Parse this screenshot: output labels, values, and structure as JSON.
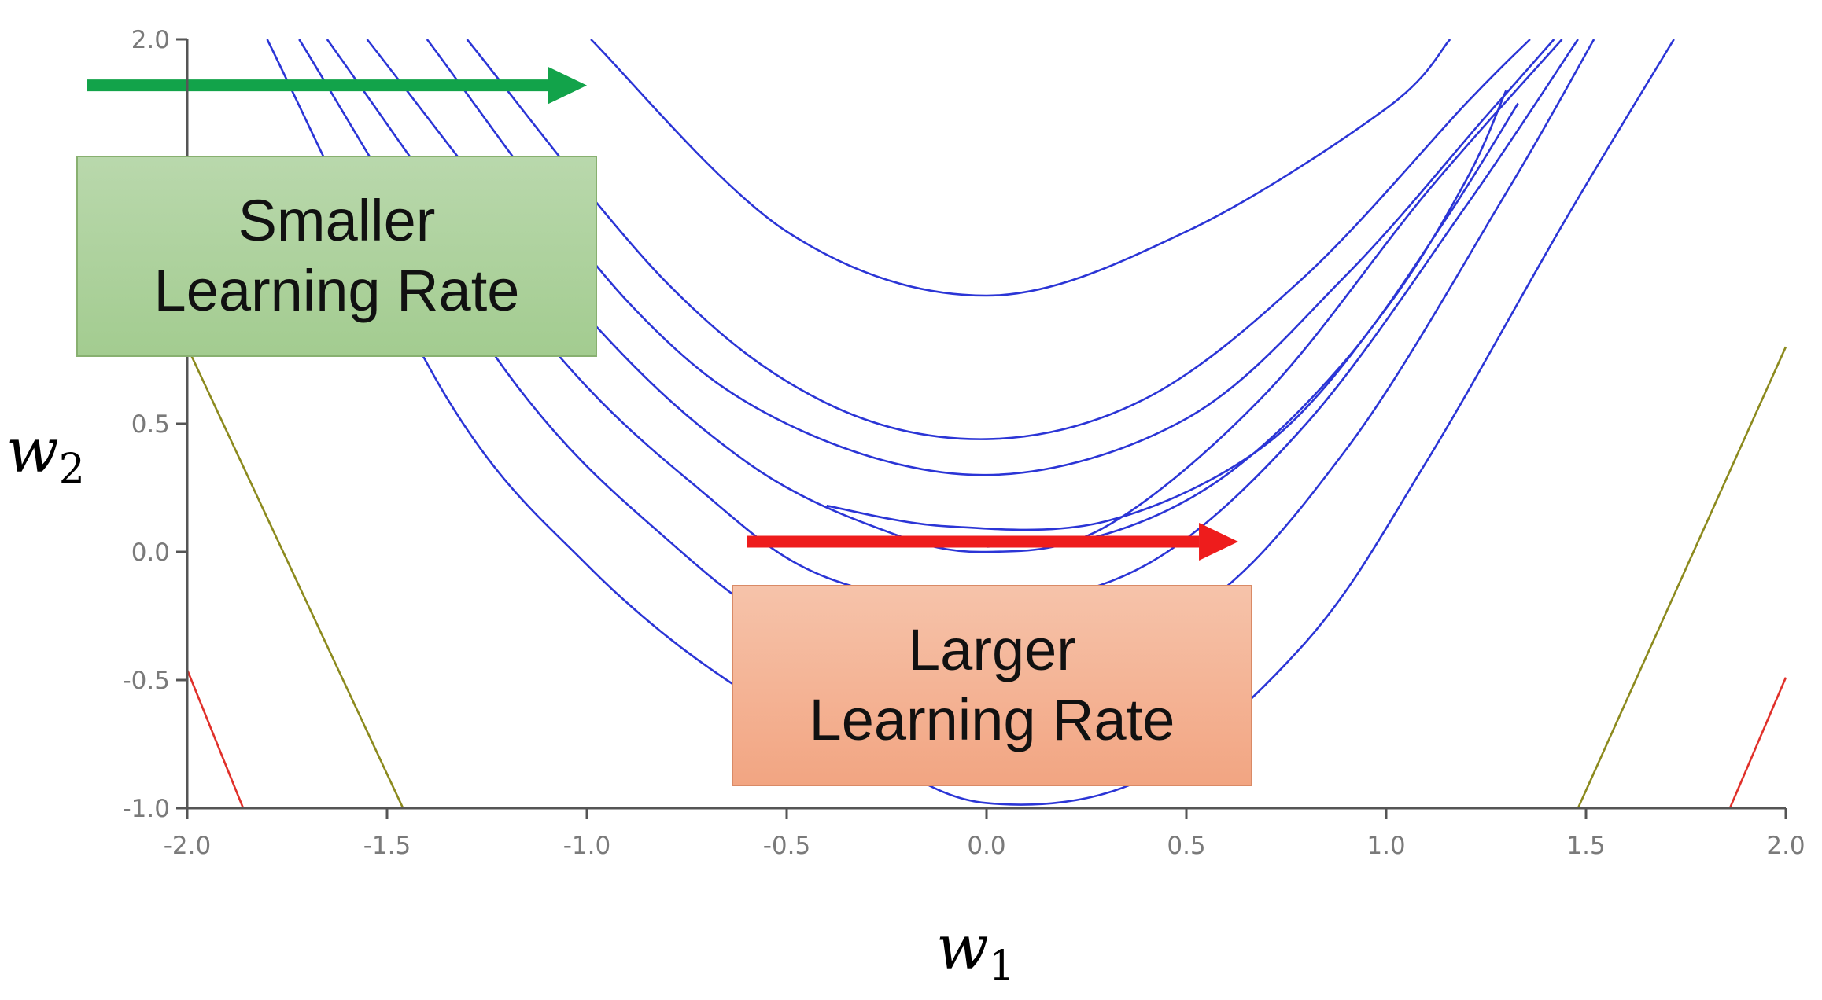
{
  "chart_data": {
    "type": "line",
    "title": "",
    "xlabel": "w",
    "xlabel_subscript": "1",
    "ylabel": "w",
    "ylabel_subscript": "2",
    "xlim": [
      -2.0,
      2.0
    ],
    "ylim": [
      -1.0,
      2.0
    ],
    "x_ticks": [
      -2.0,
      -1.5,
      -1.0,
      -0.5,
      0.0,
      0.5,
      1.0,
      1.5,
      2.0
    ],
    "x_tick_labels": [
      "-2.0",
      "-1.5",
      "-1.0",
      "-0.5",
      "0.0",
      "0.5",
      "1.0",
      "1.5",
      "2.0"
    ],
    "y_ticks": [
      -1.0,
      -0.5,
      0.0,
      0.5,
      1.0,
      1.5,
      2.0
    ],
    "y_tick_labels": [
      "-1.0",
      "-0.5",
      "0.0",
      "0.5",
      "1.0",
      "1.5",
      "2.0"
    ],
    "grid": false,
    "contour_colors": [
      "#2b35d6",
      "#8c8a1e",
      "#e0302a"
    ],
    "contours": [
      {
        "color": "#2b35d6",
        "points": [
          [
            -0.99,
            2.0
          ],
          [
            -0.5,
            1.25
          ],
          [
            0.0,
            1.0
          ],
          [
            0.5,
            1.25
          ],
          [
            1.0,
            1.73
          ],
          [
            1.16,
            2.0
          ]
        ]
      },
      {
        "color": "#2b35d6",
        "points": [
          [
            -1.3,
            2.0
          ],
          [
            -0.8,
            1.05
          ],
          [
            -0.4,
            0.58
          ],
          [
            0.0,
            0.44
          ],
          [
            0.4,
            0.6
          ],
          [
            0.8,
            1.08
          ],
          [
            1.2,
            1.75
          ],
          [
            1.36,
            2.0
          ]
        ]
      },
      {
        "color": "#2b35d6",
        "points": [
          [
            -1.4,
            2.0
          ],
          [
            -0.9,
            0.98
          ],
          [
            -0.5,
            0.5
          ],
          [
            0.0,
            0.3
          ],
          [
            0.5,
            0.52
          ],
          [
            0.9,
            1.08
          ],
          [
            1.25,
            1.7
          ],
          [
            1.42,
            2.0
          ]
        ]
      },
      {
        "color": "#2b35d6",
        "points": [
          [
            -1.55,
            2.0
          ],
          [
            -1.0,
            0.92
          ],
          [
            -0.6,
            0.35
          ],
          [
            -0.25,
            0.08
          ],
          [
            0.0,
            0.0
          ],
          [
            0.3,
            0.1
          ],
          [
            0.7,
            0.62
          ],
          [
            1.1,
            1.4
          ],
          [
            1.44,
            2.0
          ]
        ]
      },
      {
        "color": "#2b35d6",
        "points": [
          [
            -1.65,
            2.0
          ],
          [
            -1.1,
            0.82
          ],
          [
            -0.7,
            0.22
          ],
          [
            -0.4,
            -0.1
          ],
          [
            0.0,
            -0.2
          ],
          [
            0.4,
            -0.05
          ],
          [
            0.8,
            0.5
          ],
          [
            1.2,
            1.35
          ],
          [
            1.48,
            2.0
          ]
        ]
      },
      {
        "color": "#2b35d6",
        "points": [
          [
            -1.72,
            2.0
          ],
          [
            -1.2,
            0.7
          ],
          [
            -0.8,
            0.05
          ],
          [
            -0.45,
            -0.33
          ],
          [
            0.0,
            -0.45
          ],
          [
            0.5,
            -0.25
          ],
          [
            0.9,
            0.4
          ],
          [
            1.3,
            1.4
          ],
          [
            1.52,
            2.0
          ]
        ]
      },
      {
        "color": "#2b35d6",
        "points": [
          [
            -1.8,
            2.0
          ],
          [
            -1.35,
            0.6
          ],
          [
            -1.0,
            -0.05
          ],
          [
            -0.65,
            -0.5
          ],
          [
            -0.3,
            -0.78
          ],
          [
            0.0,
            -0.98
          ],
          [
            0.4,
            -0.88
          ],
          [
            0.8,
            -0.35
          ],
          [
            1.1,
            0.35
          ],
          [
            1.45,
            1.3
          ],
          [
            1.72,
            2.0
          ]
        ]
      },
      {
        "color": "#2b35d6",
        "points": [
          [
            -0.4,
            0.18
          ],
          [
            -0.1,
            0.1
          ],
          [
            0.3,
            0.12
          ],
          [
            0.7,
            0.42
          ],
          [
            1.0,
            0.95
          ],
          [
            1.2,
            1.45
          ],
          [
            1.3,
            1.8
          ]
        ]
      },
      {
        "color": "#2b35d6",
        "points": [
          [
            0.0,
            0.02
          ],
          [
            0.3,
            0.07
          ],
          [
            0.6,
            0.3
          ],
          [
            0.9,
            0.75
          ],
          [
            1.15,
            1.3
          ],
          [
            1.33,
            1.75
          ]
        ]
      },
      {
        "color": "#8c8a1e",
        "points": [
          [
            -2.0,
            0.8
          ],
          [
            -1.46,
            -1.0
          ]
        ]
      },
      {
        "color": "#8c8a1e",
        "points": [
          [
            1.48,
            -1.0
          ],
          [
            2.0,
            0.8
          ]
        ]
      },
      {
        "color": "#e0302a",
        "points": [
          [
            -2.0,
            -0.46
          ],
          [
            -1.86,
            -1.0
          ]
        ]
      },
      {
        "color": "#e0302a",
        "points": [
          [
            1.86,
            -1.0
          ],
          [
            2.0,
            -0.49
          ]
        ]
      }
    ],
    "annotations": [
      {
        "text": "Smaller\nLearning Rate",
        "arrow_color": "#12a34a",
        "arrow_from": [
          -2.25,
          1.82
        ],
        "arrow_to": [
          -1.0,
          1.82
        ]
      },
      {
        "text": "Larger\nLearning Rate",
        "arrow_color": "#ee1c1c",
        "arrow_from": [
          -0.6,
          0.04
        ],
        "arrow_to": [
          0.63,
          0.04
        ]
      }
    ]
  },
  "callouts": {
    "smaller": {
      "text": "Smaller\nLearning Rate",
      "fill": "#a8cf95"
    },
    "larger": {
      "text": "Larger\nLearning Rate",
      "fill": "#f4b191"
    }
  }
}
